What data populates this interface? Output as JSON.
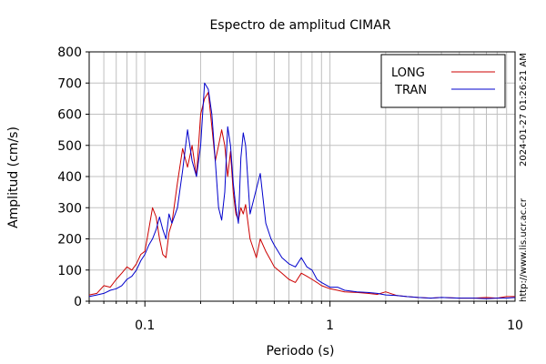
{
  "chart_data": {
    "type": "line",
    "title": "Espectro de amplitud CIMAR",
    "xlabel": "Periodo (s)",
    "ylabel": "Amplitud (cm/s)",
    "xscale": "log",
    "xlim": [
      0.05,
      10
    ],
    "ylim": [
      0,
      800
    ],
    "xticks": [
      {
        "value": 0.1,
        "label": "0.1"
      },
      {
        "value": 1,
        "label": "1"
      },
      {
        "value": 10,
        "label": "10"
      }
    ],
    "yticks": [
      0,
      100,
      200,
      300,
      400,
      500,
      600,
      700,
      800
    ],
    "grid": true,
    "legend_position": "top-right",
    "series": [
      {
        "name": "LONG",
        "color": "#cc0000",
        "x": [
          0.05,
          0.055,
          0.06,
          0.065,
          0.07,
          0.075,
          0.08,
          0.085,
          0.09,
          0.095,
          0.1,
          0.105,
          0.11,
          0.115,
          0.12,
          0.125,
          0.13,
          0.135,
          0.14,
          0.15,
          0.16,
          0.17,
          0.18,
          0.19,
          0.2,
          0.21,
          0.22,
          0.23,
          0.24,
          0.25,
          0.26,
          0.27,
          0.28,
          0.29,
          0.3,
          0.31,
          0.32,
          0.33,
          0.34,
          0.35,
          0.37,
          0.4,
          0.42,
          0.45,
          0.48,
          0.5,
          0.55,
          0.6,
          0.65,
          0.7,
          0.75,
          0.8,
          0.85,
          0.9,
          1.0,
          1.1,
          1.2,
          1.4,
          1.6,
          1.8,
          2.0,
          2.3,
          2.6,
          3.0,
          3.5,
          4.0,
          5.0,
          6.0,
          7.0,
          8.0,
          9.0,
          10.0
        ],
        "y": [
          20,
          25,
          50,
          45,
          70,
          90,
          110,
          100,
          120,
          150,
          160,
          230,
          300,
          270,
          200,
          150,
          140,
          220,
          250,
          380,
          490,
          430,
          500,
          400,
          600,
          650,
          670,
          560,
          450,
          500,
          550,
          500,
          400,
          480,
          350,
          280,
          260,
          300,
          280,
          310,
          200,
          140,
          200,
          160,
          130,
          110,
          90,
          70,
          60,
          90,
          80,
          70,
          60,
          50,
          40,
          35,
          30,
          28,
          25,
          22,
          30,
          18,
          15,
          12,
          10,
          12,
          10,
          10,
          12,
          10,
          15,
          15
        ]
      },
      {
        "name": "TRAN",
        "color": "#0000cc",
        "x": [
          0.05,
          0.055,
          0.06,
          0.065,
          0.07,
          0.075,
          0.08,
          0.085,
          0.09,
          0.095,
          0.1,
          0.105,
          0.11,
          0.115,
          0.12,
          0.125,
          0.13,
          0.135,
          0.14,
          0.15,
          0.16,
          0.17,
          0.18,
          0.19,
          0.2,
          0.21,
          0.22,
          0.23,
          0.24,
          0.25,
          0.26,
          0.27,
          0.28,
          0.29,
          0.3,
          0.31,
          0.32,
          0.33,
          0.34,
          0.35,
          0.37,
          0.4,
          0.42,
          0.45,
          0.48,
          0.5,
          0.55,
          0.6,
          0.65,
          0.7,
          0.75,
          0.8,
          0.85,
          0.9,
          1.0,
          1.1,
          1.2,
          1.4,
          1.6,
          1.8,
          2.0,
          2.3,
          2.6,
          3.0,
          3.5,
          4.0,
          5.0,
          6.0,
          7.0,
          8.0,
          9.0,
          10.0
        ],
        "y": [
          15,
          20,
          25,
          35,
          40,
          50,
          70,
          80,
          100,
          130,
          150,
          180,
          200,
          230,
          270,
          230,
          200,
          280,
          250,
          300,
          420,
          550,
          450,
          400,
          500,
          700,
          680,
          600,
          450,
          300,
          260,
          350,
          560,
          500,
          380,
          300,
          250,
          460,
          540,
          500,
          280,
          360,
          410,
          250,
          200,
          180,
          140,
          120,
          110,
          140,
          110,
          100,
          70,
          60,
          45,
          45,
          35,
          30,
          28,
          25,
          20,
          18,
          15,
          12,
          10,
          12,
          10,
          10,
          8,
          10,
          10,
          12
        ]
      }
    ]
  },
  "side_text": {
    "timestamp": "2024-01-27 01:26:21 AM",
    "website": "http://www.lis.ucr.ac.cr"
  }
}
